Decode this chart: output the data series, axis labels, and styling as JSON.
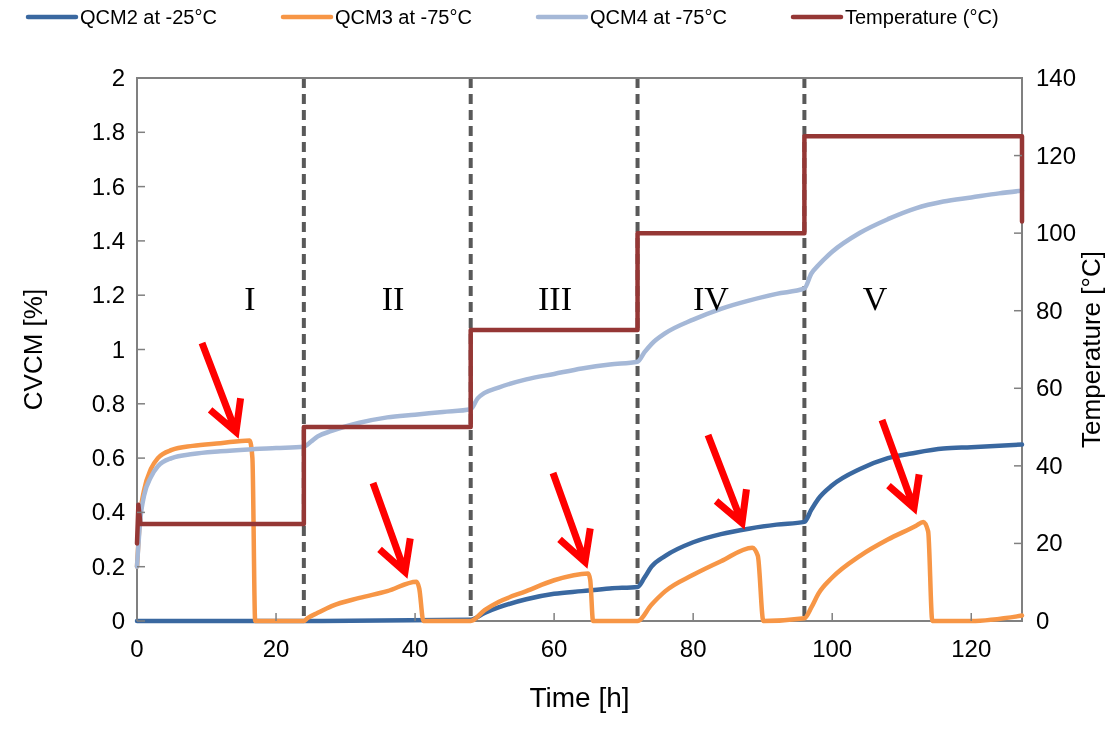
{
  "chart_data": {
    "type": "line",
    "xlabel": "Time [h]",
    "ylabel": "CVCM [%]",
    "y2label": "Temperature [°C]",
    "xlim": [
      0,
      127.3
    ],
    "xticks": [
      0,
      20,
      40,
      60,
      80,
      100,
      120
    ],
    "ylim": [
      0,
      2
    ],
    "yticks": [
      0,
      0.2,
      0.4,
      0.6,
      0.8,
      1,
      1.2,
      1.4,
      1.6,
      1.8,
      2
    ],
    "y2lim": [
      0,
      140
    ],
    "y2ticks": [
      0,
      20,
      40,
      60,
      80,
      100,
      120,
      140
    ],
    "grid": false,
    "legend": "top",
    "marker": "none",
    "line_style": "solid",
    "series": [
      {
        "name": "QCM2 at -25°C",
        "color": "#3a68a0",
        "x": [
          0,
          24,
          48,
          50,
          52,
          56,
          60,
          64,
          68,
          72,
          73,
          74,
          76,
          80,
          84,
          88,
          92,
          96,
          97,
          98,
          100,
          104,
          108,
          112,
          116,
          120,
          127.3
        ],
        "values": [
          0,
          0,
          0.005,
          0.03,
          0.05,
          0.08,
          0.1,
          0.11,
          0.12,
          0.125,
          0.16,
          0.2,
          0.24,
          0.29,
          0.32,
          0.34,
          0.355,
          0.365,
          0.41,
          0.45,
          0.5,
          0.56,
          0.6,
          0.62,
          0.635,
          0.64,
          0.65
        ]
      },
      {
        "name": "QCM3 at -75°C",
        "color": "#f79646",
        "x": [
          0,
          0.5,
          1,
          2,
          3,
          5,
          8,
          12,
          16.2,
          16.6,
          17,
          24,
          24.5,
          26,
          28,
          32,
          36,
          40.2,
          40.6,
          41.2,
          48,
          50,
          52,
          56,
          60,
          64.9,
          65.2,
          65.6,
          72,
          74,
          76,
          80,
          84,
          88.5,
          89.3,
          90.1,
          96,
          97,
          98,
          100,
          104,
          108,
          112,
          113.1,
          113.8,
          114.4,
          120,
          127.3
        ],
        "values": [
          0.2,
          0.4,
          0.48,
          0.56,
          0.6,
          0.63,
          0.645,
          0.655,
          0.665,
          0.6,
          0,
          0,
          0.01,
          0.03,
          0.055,
          0.085,
          0.11,
          0.145,
          0.12,
          0,
          0,
          0.04,
          0.07,
          0.11,
          0.15,
          0.175,
          0.15,
          0,
          0,
          0.06,
          0.11,
          0.17,
          0.22,
          0.27,
          0.24,
          0,
          0.01,
          0.05,
          0.1,
          0.16,
          0.24,
          0.3,
          0.35,
          0.365,
          0.33,
          0,
          0,
          0.02
        ]
      },
      {
        "name": "QCM4 at -75°C",
        "color": "#a5b8d7",
        "x": [
          0,
          0.5,
          1,
          2,
          3,
          5,
          8,
          12,
          16,
          20,
          24,
          25,
          26,
          28,
          32,
          36,
          40,
          44,
          48,
          49,
          50,
          52,
          56,
          60,
          64,
          68,
          72,
          73,
          74,
          76,
          80,
          84,
          88,
          92,
          96,
          97,
          98,
          100,
          104,
          108,
          112,
          116,
          120,
          124,
          127.3
        ],
        "values": [
          0.2,
          0.38,
          0.46,
          0.53,
          0.57,
          0.6,
          0.615,
          0.625,
          0.632,
          0.637,
          0.642,
          0.66,
          0.68,
          0.7,
          0.73,
          0.75,
          0.76,
          0.77,
          0.78,
          0.82,
          0.84,
          0.86,
          0.89,
          0.91,
          0.93,
          0.945,
          0.955,
          0.99,
          1.02,
          1.06,
          1.11,
          1.15,
          1.18,
          1.205,
          1.225,
          1.28,
          1.31,
          1.36,
          1.43,
          1.48,
          1.52,
          1.545,
          1.56,
          1.575,
          1.585
        ]
      },
      {
        "name": "Temperature (°C)",
        "color": "#953735",
        "axis": "y2",
        "type": "step",
        "x": [
          0,
          0.2,
          0.5,
          24,
          24,
          48,
          48,
          72,
          72,
          96,
          96,
          127.3,
          127.3
        ],
        "values": [
          20,
          30,
          25,
          25,
          50,
          50,
          75,
          75,
          100,
          100,
          125,
          125,
          103
        ]
      }
    ],
    "ref_lines": [
      {
        "axis": "x",
        "value": 24,
        "color": "#595959",
        "line_style": "dashed"
      },
      {
        "axis": "x",
        "value": 48,
        "color": "#595959",
        "line_style": "dashed"
      },
      {
        "axis": "x",
        "value": 72,
        "color": "#595959",
        "line_style": "dashed"
      },
      {
        "axis": "x",
        "value": 96,
        "color": "#595959",
        "line_style": "dashed"
      }
    ],
    "annotations": [
      "I",
      "II",
      "III",
      "IV",
      "V"
    ]
  }
}
